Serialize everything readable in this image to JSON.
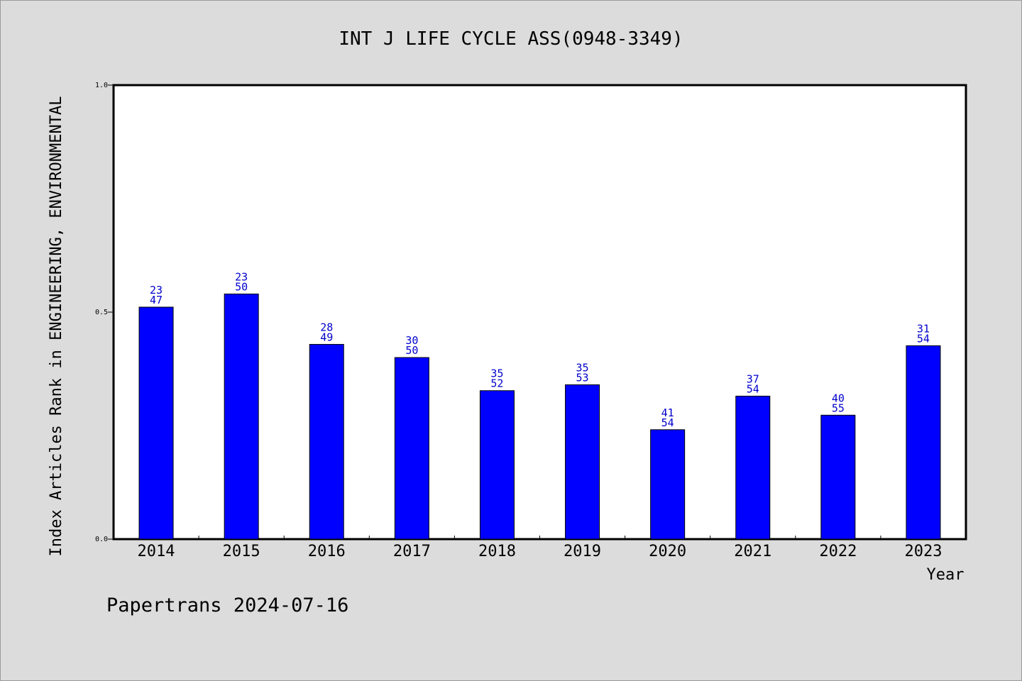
{
  "chart_data": {
    "type": "bar",
    "title": "INT J LIFE CYCLE ASS(0948-3349)",
    "xlabel": "Year",
    "ylabel": "Index Articles Rank in ENGINEERING, ENVIRONMENTAL",
    "ylim": [
      0.0,
      1.0
    ],
    "yticks": [
      "0.0",
      "0.5",
      "1.0"
    ],
    "categories": [
      "2014",
      "2015",
      "2016",
      "2017",
      "2018",
      "2019",
      "2020",
      "2021",
      "2022",
      "2023"
    ],
    "values": [
      0.511,
      0.54,
      0.429,
      0.4,
      0.327,
      0.34,
      0.241,
      0.315,
      0.273,
      0.426
    ],
    "labels_top": [
      "23",
      "23",
      "28",
      "30",
      "35",
      "35",
      "41",
      "37",
      "40",
      "31"
    ],
    "labels_bottom": [
      "47",
      "50",
      "49",
      "50",
      "52",
      "53",
      "54",
      "54",
      "55",
      "54"
    ],
    "bar_color": "#0000ff",
    "label_color": "#0000cc",
    "grid": false,
    "legend": "none"
  },
  "footer": "Papertrans 2024-07-16"
}
